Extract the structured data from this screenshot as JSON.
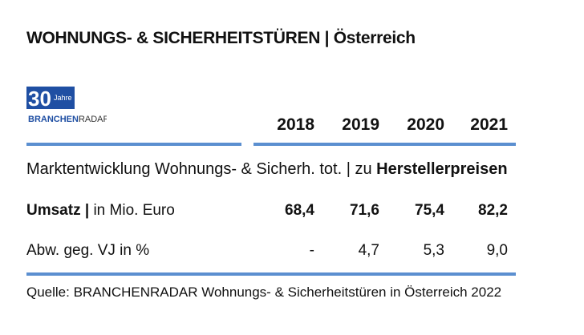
{
  "title": "WOHNUNGS- & SICHERHEITSTÜREN | Österreich",
  "logo": {
    "line1": "30",
    "line1_small": "Jahre",
    "line2": "BRANCHENRADAR"
  },
  "subtitle": {
    "prefix": "Marktentwicklung Wohnungs- & Sicherh. tot. | zu ",
    "emphasis": "Herstellerpreisen"
  },
  "colors": {
    "accent_rule": "#5b8fd0",
    "logo_blue": "#1f4fa3"
  },
  "chart_data": {
    "type": "table",
    "columns": [
      "2018",
      "2019",
      "2020",
      "2021"
    ],
    "rows": [
      {
        "label_bold": "Umsatz |",
        "label_rest": "in Mio. Euro",
        "values": [
          "68,4",
          "71,6",
          "75,4",
          "82,2"
        ],
        "bold": true
      },
      {
        "label_bold": "",
        "label_rest": "Abw. geg. VJ in %",
        "values": [
          "-",
          "4,7",
          "5,3",
          "9,0"
        ],
        "bold": false
      }
    ]
  },
  "source": "Quelle: BRANCHENRADAR Wohnungs- & Sicherheitstüren in Österreich 2022"
}
